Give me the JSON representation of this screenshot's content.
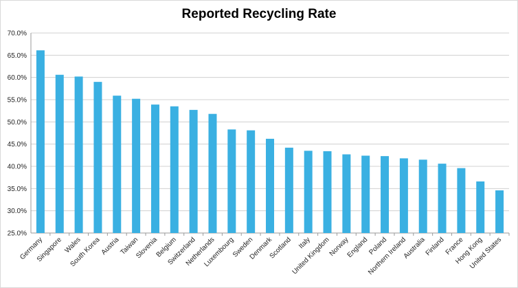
{
  "chart_data": {
    "type": "bar",
    "title": "Reported Recycling Rate",
    "xlabel": "",
    "ylabel": "",
    "categories": [
      "Germany",
      "Singapore",
      "Wales",
      "South Korea",
      "Austria",
      "Taiwan",
      "Slovenia",
      "Belgium",
      "Switzerland",
      "Netherlands",
      "Luxembourg",
      "Sweden",
      "Denmark",
      "Scotland",
      "Italy",
      "United Kingdom",
      "Norway",
      "England",
      "Poland",
      "Northern Ireland",
      "Australia",
      "Finland",
      "France",
      "Hong Kong",
      "United States"
    ],
    "values": [
      66.1,
      60.6,
      60.2,
      59.0,
      55.9,
      55.2,
      53.9,
      53.5,
      52.7,
      51.8,
      48.3,
      48.1,
      46.2,
      44.2,
      43.5,
      43.4,
      42.7,
      42.4,
      42.3,
      41.8,
      41.5,
      40.6,
      39.6,
      36.6,
      34.6
    ],
    "ylim": [
      25,
      70
    ],
    "yticks": [
      "25.0%",
      "30.0%",
      "35.0%",
      "40.0%",
      "45.0%",
      "50.0%",
      "55.0%",
      "60.0%",
      "65.0%",
      "70.0%"
    ],
    "grid": true,
    "bar_color": "#3ab0e2",
    "legend": "none"
  }
}
